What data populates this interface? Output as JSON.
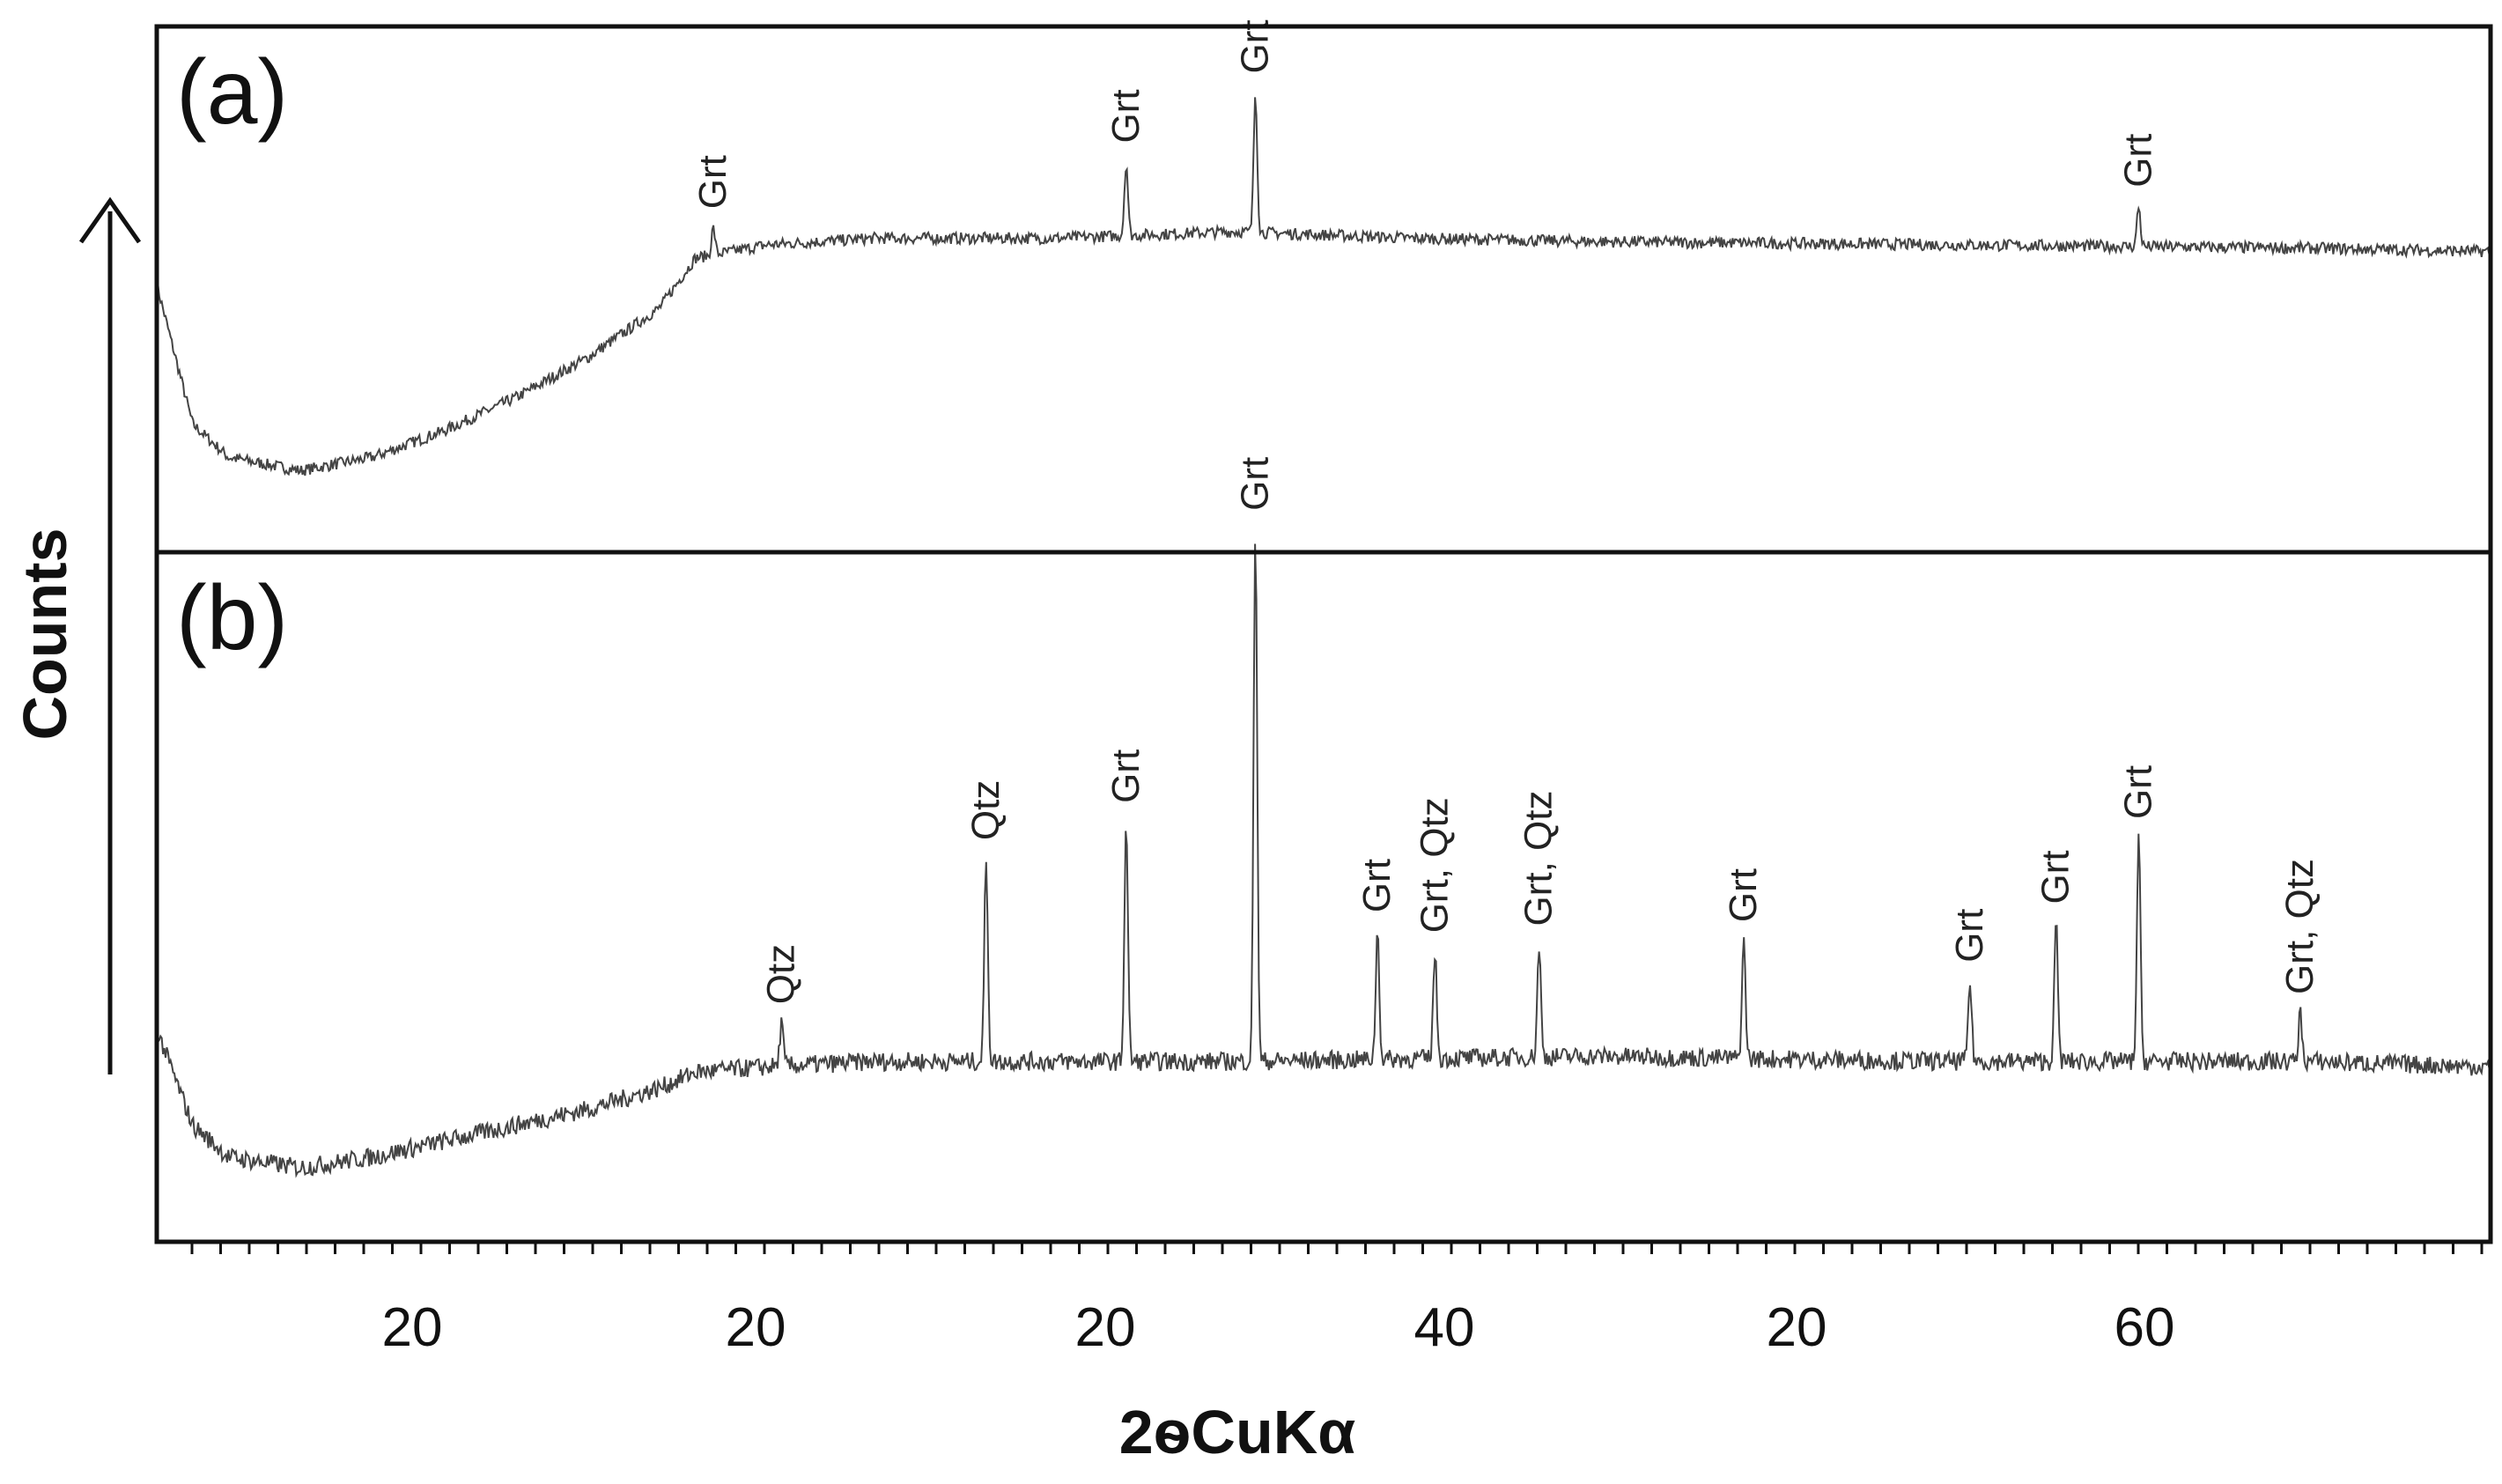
{
  "chart_data": {
    "type": "line",
    "xlabel": "2ѳCuKα",
    "ylabel": "Counts",
    "x_tick_labels": [
      "20",
      "20",
      "20",
      "40",
      "20",
      "60"
    ],
    "xlim": [
      10,
      75
    ],
    "grid": false,
    "panels": [
      {
        "panel_label": "(a)",
        "baseline": [
          [
            10,
            0.62
          ],
          [
            11,
            0.2
          ],
          [
            12,
            0.1
          ],
          [
            14,
            0.06
          ],
          [
            16,
            0.1
          ],
          [
            18,
            0.18
          ],
          [
            20,
            0.28
          ],
          [
            22,
            0.4
          ],
          [
            24,
            0.55
          ],
          [
            25,
            0.7
          ],
          [
            27,
            0.74
          ],
          [
            30,
            0.76
          ],
          [
            35,
            0.76
          ],
          [
            40,
            0.78
          ],
          [
            45,
            0.76
          ],
          [
            50,
            0.75
          ],
          [
            60,
            0.74
          ],
          [
            70,
            0.73
          ],
          [
            75,
            0.72
          ]
        ],
        "peaks": [
          {
            "x": 25.5,
            "height": 0.08,
            "label": "Grt"
          },
          {
            "x": 37.0,
            "height": 0.22,
            "label": "Grt"
          },
          {
            "x": 40.6,
            "height": 0.42,
            "label": "Grt"
          },
          {
            "x": 65.2,
            "height": 0.12,
            "label": "Grt"
          }
        ]
      },
      {
        "panel_label": "(b)",
        "baseline": [
          [
            10,
            0.3
          ],
          [
            11,
            0.12
          ],
          [
            12,
            0.06
          ],
          [
            14,
            0.04
          ],
          [
            16,
            0.06
          ],
          [
            18,
            0.09
          ],
          [
            20,
            0.12
          ],
          [
            22,
            0.15
          ],
          [
            24,
            0.19
          ],
          [
            25,
            0.22
          ],
          [
            27,
            0.23
          ],
          [
            30,
            0.24
          ],
          [
            40,
            0.24
          ],
          [
            50,
            0.25
          ],
          [
            60,
            0.24
          ],
          [
            70,
            0.24
          ],
          [
            75,
            0.23
          ]
        ],
        "peaks": [
          {
            "x": 27.4,
            "height": 0.08,
            "label": "Qtz"
          },
          {
            "x": 33.1,
            "height": 0.38,
            "label": "Qtz"
          },
          {
            "x": 37.0,
            "height": 0.45,
            "label": "Grt"
          },
          {
            "x": 40.6,
            "height": 1.0,
            "label": "Grt"
          },
          {
            "x": 44.0,
            "height": 0.24,
            "label": "Grt"
          },
          {
            "x": 45.6,
            "height": 0.2,
            "label": "Grt, Qtz"
          },
          {
            "x": 48.5,
            "height": 0.21,
            "label": "Grt, Qtz"
          },
          {
            "x": 54.2,
            "height": 0.22,
            "label": "Grt"
          },
          {
            "x": 60.5,
            "height": 0.15,
            "label": "Grt"
          },
          {
            "x": 62.9,
            "height": 0.26,
            "label": "Grt"
          },
          {
            "x": 65.2,
            "height": 0.42,
            "label": "Grt"
          },
          {
            "x": 69.7,
            "height": 0.09,
            "label": "Grt, Qtz"
          }
        ]
      }
    ]
  }
}
